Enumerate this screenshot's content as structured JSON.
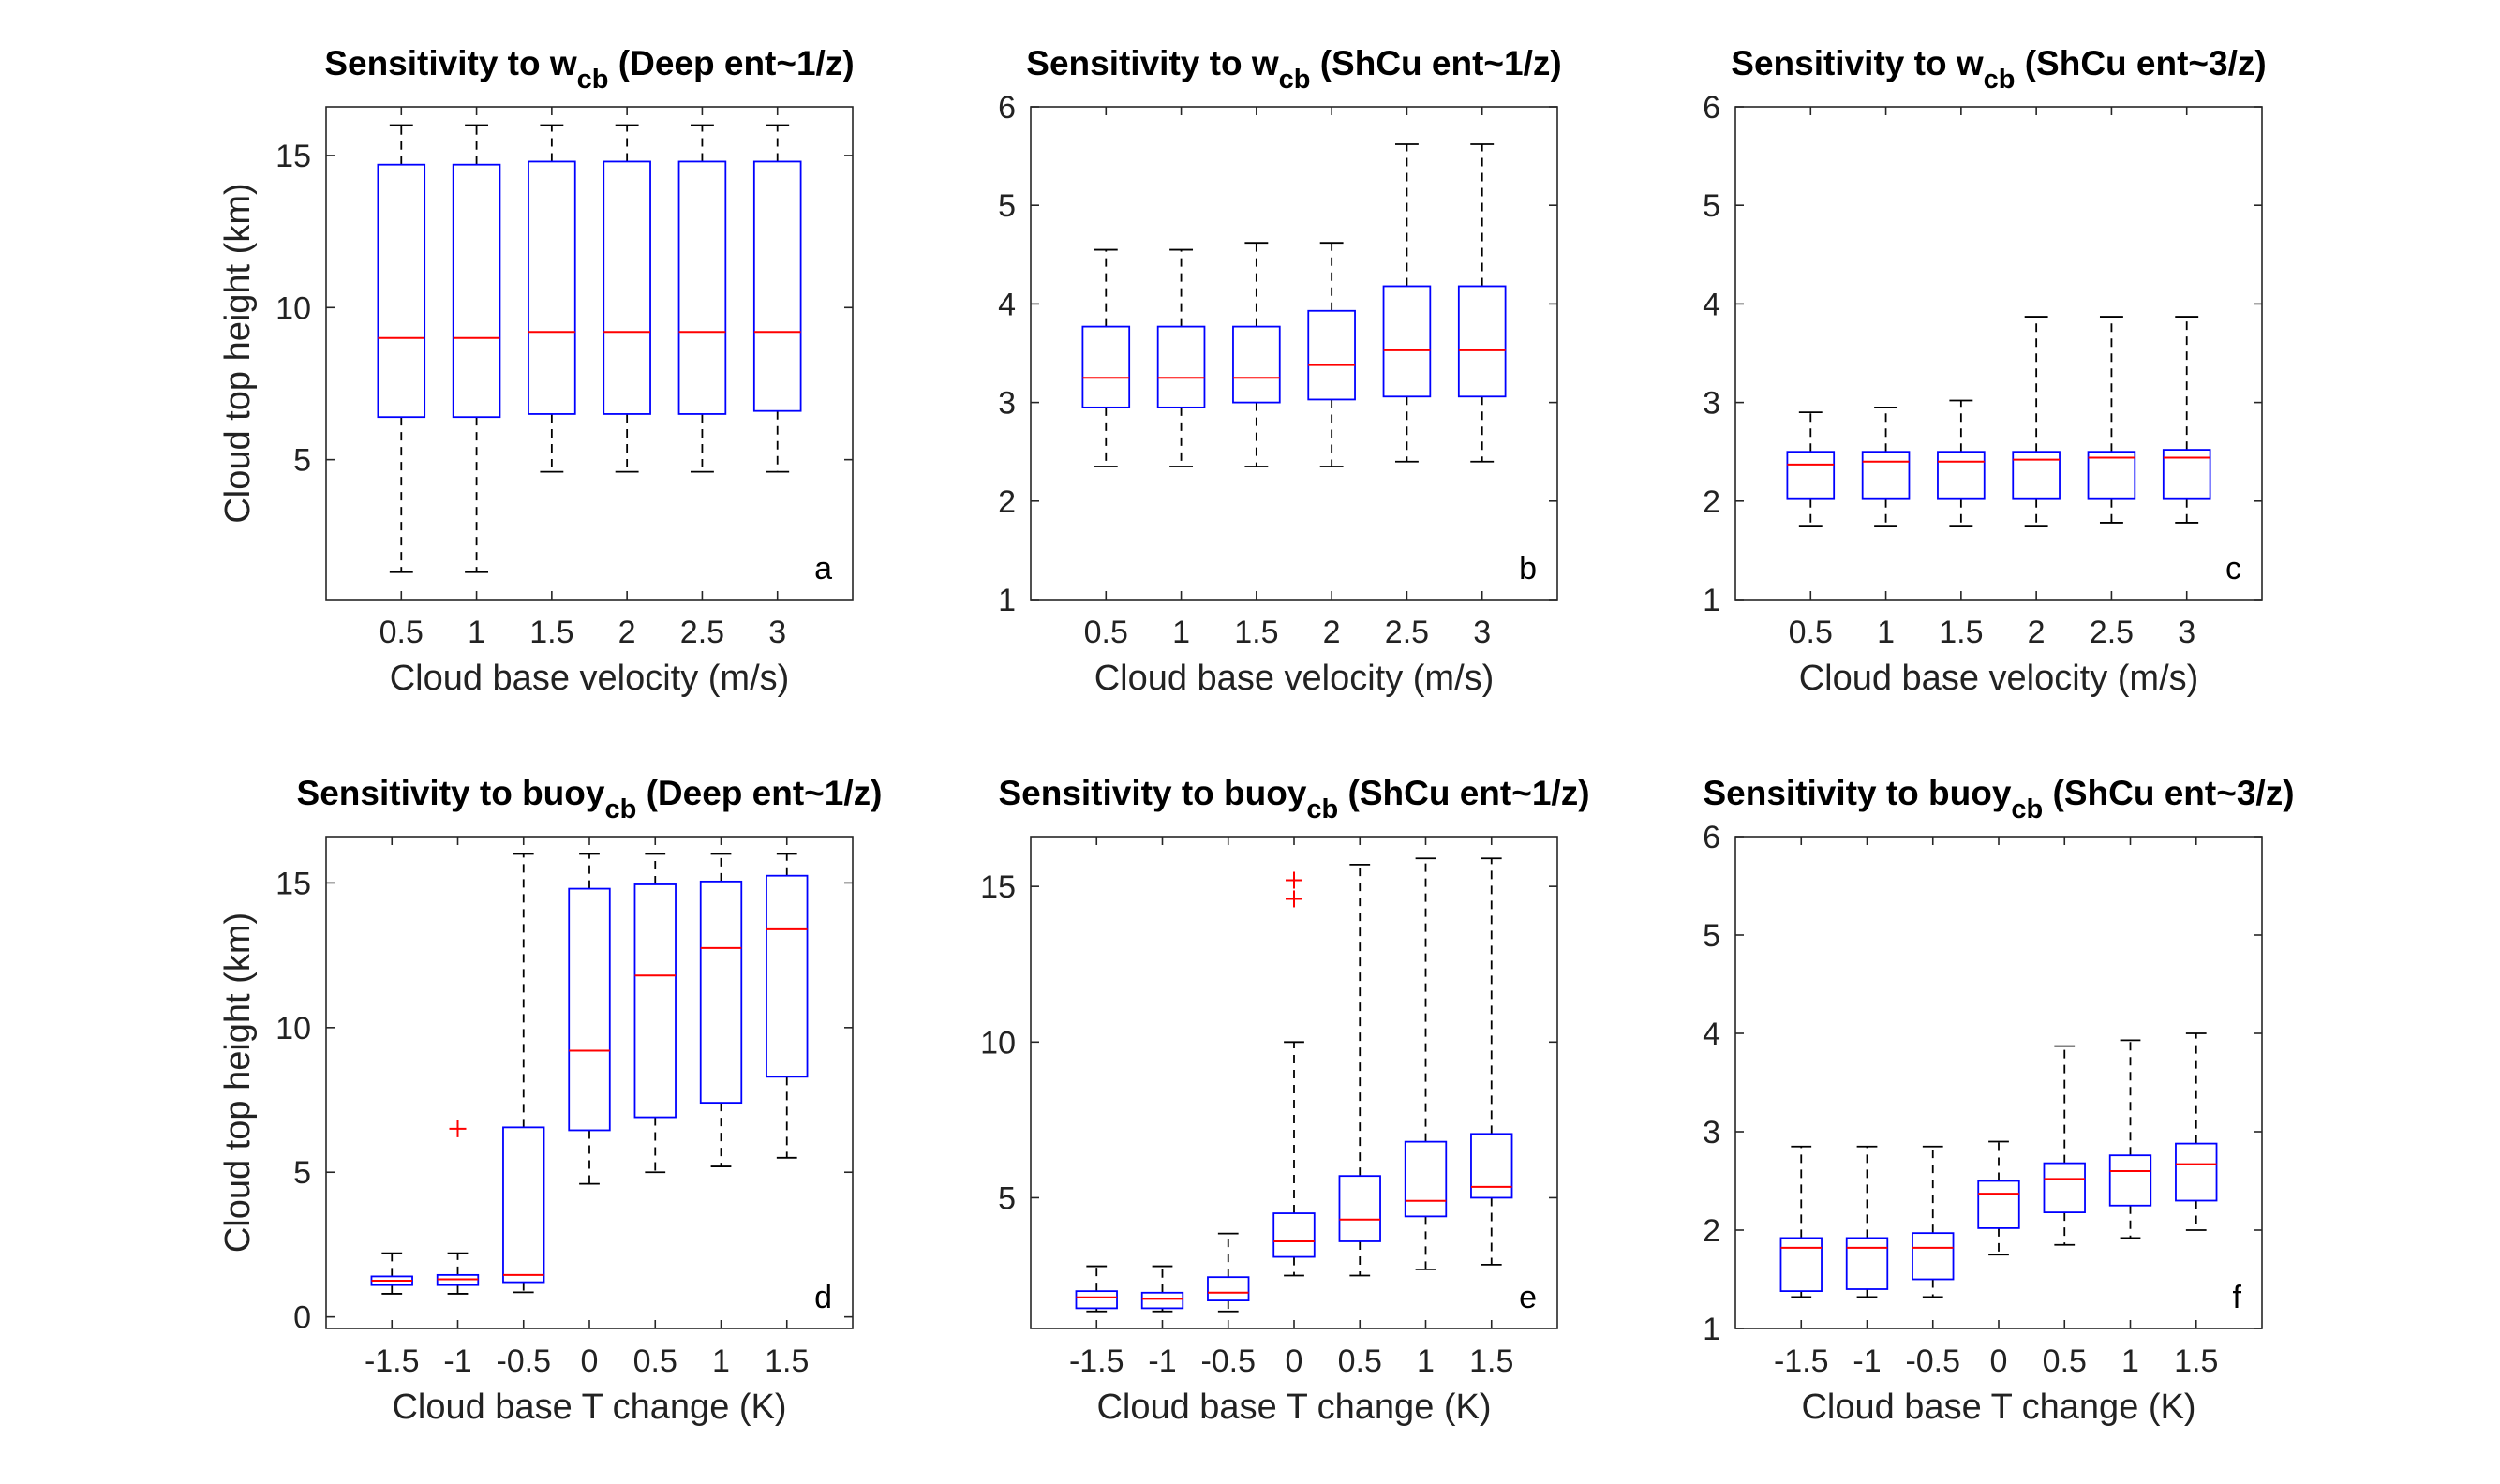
{
  "colors": {
    "box": "#0000ff",
    "median": "#ff0000",
    "whisker": "#000000",
    "outlier": "#ff0000"
  },
  "chart_data": [
    {
      "type": "box",
      "panel_label": "a",
      "title": {
        "main": "Sensitivity to w",
        "sub": "cb",
        "rest": " (Deep ent~1/z)"
      },
      "xlabel": "Cloud base velocity (m/s)",
      "ylabel": "Cloud top height (km)",
      "ylim": [
        0.4,
        16.6
      ],
      "yticks": [
        "5",
        "10",
        "15"
      ],
      "ytick_values": [
        5,
        10,
        15
      ],
      "categories": [
        "0.5",
        "1",
        "1.5",
        "2",
        "2.5",
        "3"
      ],
      "boxes": [
        {
          "min": 1.3,
          "q1": 6.4,
          "median": 9.0,
          "q3": 14.7,
          "max": 16.0
        },
        {
          "min": 1.3,
          "q1": 6.4,
          "median": 9.0,
          "q3": 14.7,
          "max": 16.0
        },
        {
          "min": 4.6,
          "q1": 6.5,
          "median": 9.2,
          "q3": 14.8,
          "max": 16.0
        },
        {
          "min": 4.6,
          "q1": 6.5,
          "median": 9.2,
          "q3": 14.8,
          "max": 16.0
        },
        {
          "min": 4.6,
          "q1": 6.5,
          "median": 9.2,
          "q3": 14.8,
          "max": 16.0
        },
        {
          "min": 4.6,
          "q1": 6.6,
          "median": 9.2,
          "q3": 14.8,
          "max": 16.0
        }
      ],
      "outliers": []
    },
    {
      "type": "box",
      "panel_label": "b",
      "title": {
        "main": "Sensitivity to w",
        "sub": "cb",
        "rest": " (ShCu ent~1/z)"
      },
      "xlabel": "Cloud base velocity (m/s)",
      "ylabel": "",
      "ylim": [
        1,
        6
      ],
      "yticks": [
        "1",
        "2",
        "3",
        "4",
        "5",
        "6"
      ],
      "ytick_values": [
        1,
        2,
        3,
        4,
        5,
        6
      ],
      "categories": [
        "0.5",
        "1",
        "1.5",
        "2",
        "2.5",
        "3"
      ],
      "boxes": [
        {
          "min": 2.35,
          "q1": 2.95,
          "median": 3.25,
          "q3": 3.77,
          "max": 4.55
        },
        {
          "min": 2.35,
          "q1": 2.95,
          "median": 3.25,
          "q3": 3.77,
          "max": 4.55
        },
        {
          "min": 2.35,
          "q1": 3.0,
          "median": 3.25,
          "q3": 3.77,
          "max": 4.62
        },
        {
          "min": 2.35,
          "q1": 3.03,
          "median": 3.38,
          "q3": 3.93,
          "max": 4.62
        },
        {
          "min": 2.4,
          "q1": 3.06,
          "median": 3.53,
          "q3": 4.18,
          "max": 5.62
        },
        {
          "min": 2.4,
          "q1": 3.06,
          "median": 3.53,
          "q3": 4.18,
          "max": 5.62
        }
      ],
      "outliers": []
    },
    {
      "type": "box",
      "panel_label": "c",
      "title": {
        "main": "Sensitivity to w",
        "sub": "cb",
        "rest": " (ShCu ent~3/z)"
      },
      "xlabel": "Cloud base velocity (m/s)",
      "ylabel": "",
      "ylim": [
        1,
        6
      ],
      "yticks": [
        "1",
        "2",
        "3",
        "4",
        "5",
        "6"
      ],
      "ytick_values": [
        1,
        2,
        3,
        4,
        5,
        6
      ],
      "categories": [
        "0.5",
        "1",
        "1.5",
        "2",
        "2.5",
        "3"
      ],
      "boxes": [
        {
          "min": 1.75,
          "q1": 2.02,
          "median": 2.37,
          "q3": 2.5,
          "max": 2.9
        },
        {
          "min": 1.75,
          "q1": 2.02,
          "median": 2.4,
          "q3": 2.5,
          "max": 2.95
        },
        {
          "min": 1.75,
          "q1": 2.02,
          "median": 2.4,
          "q3": 2.5,
          "max": 3.02
        },
        {
          "min": 1.75,
          "q1": 2.02,
          "median": 2.42,
          "q3": 2.5,
          "max": 3.87
        },
        {
          "min": 1.78,
          "q1": 2.02,
          "median": 2.44,
          "q3": 2.5,
          "max": 3.87
        },
        {
          "min": 1.78,
          "q1": 2.02,
          "median": 2.44,
          "q3": 2.52,
          "max": 3.87
        }
      ],
      "outliers": []
    },
    {
      "type": "box",
      "panel_label": "d",
      "title": {
        "main": "Sensitivity to buoy",
        "sub": "cb",
        "rest": " (Deep ent~1/z)"
      },
      "xlabel": "Cloud base T change (K)",
      "ylabel": "Cloud top height (km)",
      "ylim": [
        -0.4,
        16.6
      ],
      "yticks": [
        "0",
        "5",
        "10",
        "15"
      ],
      "ytick_values": [
        0,
        5,
        10,
        15
      ],
      "categories": [
        "-1.5",
        "-1",
        "-0.5",
        "0",
        "0.5",
        "1",
        "1.5"
      ],
      "boxes": [
        {
          "min": 0.8,
          "q1": 1.1,
          "median": 1.25,
          "q3": 1.4,
          "max": 2.2
        },
        {
          "min": 0.8,
          "q1": 1.1,
          "median": 1.3,
          "q3": 1.45,
          "max": 2.2
        },
        {
          "min": 0.85,
          "q1": 1.2,
          "median": 1.45,
          "q3": 6.55,
          "max": 16.0
        },
        {
          "min": 4.6,
          "q1": 6.45,
          "median": 9.2,
          "q3": 14.8,
          "max": 16.0
        },
        {
          "min": 5.0,
          "q1": 6.9,
          "median": 11.8,
          "q3": 14.95,
          "max": 16.0
        },
        {
          "min": 5.2,
          "q1": 7.4,
          "median": 12.75,
          "q3": 15.05,
          "max": 16.0
        },
        {
          "min": 5.5,
          "q1": 8.3,
          "median": 13.4,
          "q3": 15.25,
          "max": 16.0
        }
      ],
      "outliers": [
        {
          "category": "-1",
          "values": [
            6.5
          ]
        }
      ]
    },
    {
      "type": "box",
      "panel_label": "e",
      "title": {
        "main": "Sensitivity to buoy",
        "sub": "cb",
        "rest": " (ShCu ent~1/z)"
      },
      "xlabel": "Cloud base T change (K)",
      "ylabel": "",
      "ylim": [
        0.8,
        16.6
      ],
      "yticks": [
        "5",
        "10",
        "15"
      ],
      "ytick_values": [
        5,
        10,
        15
      ],
      "categories": [
        "-1.5",
        "-1",
        "-0.5",
        "0",
        "0.5",
        "1",
        "1.5"
      ],
      "boxes": [
        {
          "min": 1.35,
          "q1": 1.45,
          "median": 1.8,
          "q3": 2.0,
          "max": 2.8
        },
        {
          "min": 1.35,
          "q1": 1.45,
          "median": 1.75,
          "q3": 1.95,
          "max": 2.8
        },
        {
          "min": 1.35,
          "q1": 1.7,
          "median": 1.95,
          "q3": 2.45,
          "max": 3.85
        },
        {
          "min": 2.5,
          "q1": 3.1,
          "median": 3.6,
          "q3": 4.5,
          "max": 10.0
        },
        {
          "min": 2.5,
          "q1": 3.6,
          "median": 4.3,
          "q3": 5.7,
          "max": 15.7
        },
        {
          "min": 2.7,
          "q1": 4.4,
          "median": 4.9,
          "q3": 6.8,
          "max": 15.9
        },
        {
          "min": 2.85,
          "q1": 5.0,
          "median": 5.35,
          "q3": 7.05,
          "max": 15.9
        }
      ],
      "outliers": [
        {
          "category": "0",
          "values": [
            15.2,
            14.6
          ]
        }
      ]
    },
    {
      "type": "box",
      "panel_label": "f",
      "title": {
        "main": "Sensitivity to buoy",
        "sub": "cb",
        "rest": " (ShCu ent~3/z)"
      },
      "xlabel": "Cloud base T change (K)",
      "ylabel": "",
      "ylim": [
        1,
        6
      ],
      "yticks": [
        "1",
        "2",
        "3",
        "4",
        "5",
        "6"
      ],
      "ytick_values": [
        1,
        2,
        3,
        4,
        5,
        6
      ],
      "categories": [
        "-1.5",
        "-1",
        "-0.5",
        "0",
        "0.5",
        "1",
        "1.5"
      ],
      "boxes": [
        {
          "min": 1.32,
          "q1": 1.38,
          "median": 1.82,
          "q3": 1.92,
          "max": 2.85
        },
        {
          "min": 1.32,
          "q1": 1.4,
          "median": 1.82,
          "q3": 1.92,
          "max": 2.85
        },
        {
          "min": 1.32,
          "q1": 1.5,
          "median": 1.82,
          "q3": 1.97,
          "max": 2.85
        },
        {
          "min": 1.75,
          "q1": 2.02,
          "median": 2.37,
          "q3": 2.5,
          "max": 2.9
        },
        {
          "min": 1.85,
          "q1": 2.18,
          "median": 2.52,
          "q3": 2.68,
          "max": 3.87
        },
        {
          "min": 1.92,
          "q1": 2.25,
          "median": 2.6,
          "q3": 2.76,
          "max": 3.93
        },
        {
          "min": 2.0,
          "q1": 2.3,
          "median": 2.67,
          "q3": 2.88,
          "max": 4.0
        }
      ],
      "outliers": []
    }
  ]
}
